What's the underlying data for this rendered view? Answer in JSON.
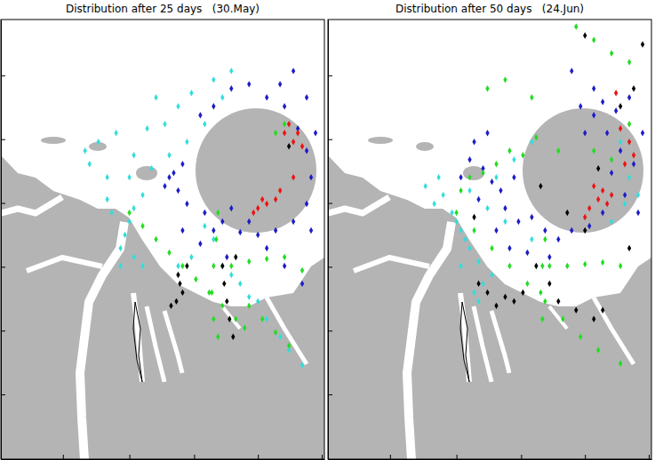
{
  "chart_data": [
    {
      "type": "scatter",
      "title": "Distribution after 25 days   (30.May)",
      "xlim": [
        0,
        365
      ],
      "ylim": [
        0,
        496
      ],
      "xticks": [
        70,
        145,
        218,
        290,
        362
      ],
      "yticks": [
        73,
        145,
        217,
        289,
        361,
        433
      ],
      "tick_labels": false,
      "marker": "diamond",
      "series": [
        {
          "color": "#33dddd",
          "x": [
            95,
            110,
            130,
            150,
            165,
            185,
            200,
            175,
            215,
            240,
            250,
            145,
            170,
            120,
            100,
            230,
            210,
            260,
            190,
            160,
            150,
            145,
            140,
            135,
            150,
            160,
            135,
            125,
            120,
            250,
            270,
            290,
            300,
            315,
            325,
            340,
            280,
            260,
            200,
            215,
            230,
            240
          ],
          "values": [
            348,
            358,
            368,
            343,
            373,
            378,
            398,
            408,
            413,
            428,
            408,
            318,
            328,
            318,
            333,
            378,
            358,
            438,
            343,
            298,
            283,
            268,
            253,
            238,
            228,
            218,
            218,
            278,
            293,
            218,
            198,
            178,
            158,
            138,
            123,
            106,
            183,
            208,
            218,
            228,
            263,
            248
          ]
        },
        {
          "color": "#1c1cc8",
          "x": [
            190,
            200,
            185,
            210,
            230,
            250,
            270,
            290,
            310,
            330,
            345,
            350,
            345,
            335,
            320,
            300,
            280,
            330,
            315,
            260,
            240,
            225,
            205,
            195,
            240,
            260,
            280,
            300,
            320,
            340,
            255,
            225,
            205,
            345,
            355,
            350
          ],
          "values": [
            318,
            303,
            308,
            288,
            278,
            268,
            256,
            253,
            258,
            268,
            288,
            318,
            348,
            373,
            398,
            408,
            423,
            438,
            423,
            418,
            398,
            388,
            333,
            323,
            258,
            283,
            268,
            238,
            218,
            198,
            228,
            243,
            258,
            408,
            368,
            258
          ]
        },
        {
          "color": "#22dd22",
          "x": [
            145,
            160,
            175,
            190,
            205,
            220,
            235,
            250,
            265,
            275,
            245,
            243,
            240,
            238,
            240,
            245,
            260,
            280,
            300,
            320,
            340,
            280,
            295,
            310,
            325,
            320,
            310
          ],
          "values": [
            278,
            263,
            248,
            233,
            218,
            203,
            188,
            173,
            158,
            148,
            278,
            248,
            218,
            188,
            158,
            138,
            218,
            223,
            226,
            228,
            213,
            173,
            158,
            143,
            128,
            378,
            368
          ]
        },
        {
          "color": "#000000",
          "x": [
            200,
            202,
            205,
            198,
            192,
            210,
            250,
            252,
            255,
            258,
            262,
            265,
            325
          ],
          "values": [
            208,
            198,
            188,
            178,
            173,
            218,
            218,
            198,
            178,
            158,
            138,
            228,
            353
          ]
        },
        {
          "color": "#ee1111",
          "x": [
            325,
            335,
            330,
            320,
            340,
            310,
            300,
            290,
            315,
            330,
            285,
            295
          ],
          "values": [
            378,
            368,
            358,
            368,
            353,
            293,
            288,
            283,
            303,
            318,
            278,
            293
          ]
        }
      ]
    },
    {
      "type": "scatter",
      "title": "Distribution after 50 days   (24.Jun)",
      "xlim": [
        0,
        365
      ],
      "ylim": [
        0,
        496
      ],
      "xticks": [
        70,
        145,
        218,
        290,
        362
      ],
      "yticks": [
        73,
        145,
        217,
        289,
        361,
        433
      ],
      "tick_labels": false,
      "marker": "diamond",
      "series": [
        {
          "color": "#33dddd",
          "x": [
            130,
            140,
            150,
            160,
            170,
            150,
            175,
            110,
            120,
            125,
            160,
            180,
            200,
            190,
            210,
            230,
            145,
            155,
            230,
            330,
            340,
            350,
            320,
            335,
            170,
            185,
            165
          ],
          "values": [
            298,
            278,
            258,
            238,
            223,
            218,
            198,
            308,
            288,
            318,
            303,
            283,
            268,
            318,
            338,
            358,
            268,
            248,
            248,
            358,
            318,
            298,
            268,
            288,
            178,
            208,
            188
          ]
        },
        {
          "color": "#1c1cc8",
          "x": [
            160,
            175,
            185,
            195,
            170,
            200,
            215,
            230,
            245,
            260,
            190,
            205,
            225,
            250,
            275,
            295,
            310,
            150,
            165,
            180,
            210,
            300,
            310,
            325,
            340,
            315,
            330,
            345,
            335,
            350,
            300,
            285,
            320,
            355,
            290,
            275
          ],
          "values": [
            338,
            328,
            313,
            303,
            293,
            283,
            268,
            273,
            258,
            248,
            258,
            238,
            233,
            228,
            258,
            263,
            278,
            318,
            358,
            368,
            318,
            418,
            403,
            393,
            408,
            368,
            348,
            333,
            298,
            278,
            388,
            398,
            323,
            368,
            368,
            438
          ]
        },
        {
          "color": "#22dd22",
          "x": [
            145,
            165,
            185,
            205,
            225,
            245,
            265,
            285,
            305,
            330,
            245,
            242,
            240,
            242,
            250,
            270,
            290,
            310,
            330,
            150,
            160,
            175,
            190,
            205,
            220,
            235,
            280,
            300,
            320,
            340,
            200,
            180,
            230,
            260,
            300,
            320,
            340
          ],
          "values": [
            278,
            258,
            238,
            218,
            198,
            178,
            158,
            138,
            123,
            108,
            248,
            218,
            188,
            158,
            218,
            218,
            220,
            222,
            218,
            303,
            318,
            323,
            333,
            348,
            343,
            363,
            488,
            473,
            458,
            448,
            428,
            418,
            408,
            348,
            348,
            338,
            378
          ]
        },
        {
          "color": "#000000",
          "x": [
            170,
            180,
            190,
            200,
            210,
            220,
            235,
            250,
            260,
            280,
            300,
            310,
            270,
            290,
            305,
            330,
            345,
            355,
            290,
            340,
            165,
            240
          ],
          "values": [
            198,
            188,
            173,
            183,
            178,
            188,
            218,
            198,
            178,
            168,
            158,
            168,
            278,
            258,
            328,
            398,
            418,
            468,
            478,
            238,
            273,
            308
          ]
        },
        {
          "color": "#ee1111",
          "x": [
            300,
            310,
            305,
            315,
            295,
            290,
            320,
            340,
            345,
            335,
            325,
            330
          ],
          "values": [
            308,
            303,
            293,
            288,
            283,
            273,
            298,
            358,
            343,
            333,
            413,
            373
          ]
        }
      ]
    }
  ]
}
